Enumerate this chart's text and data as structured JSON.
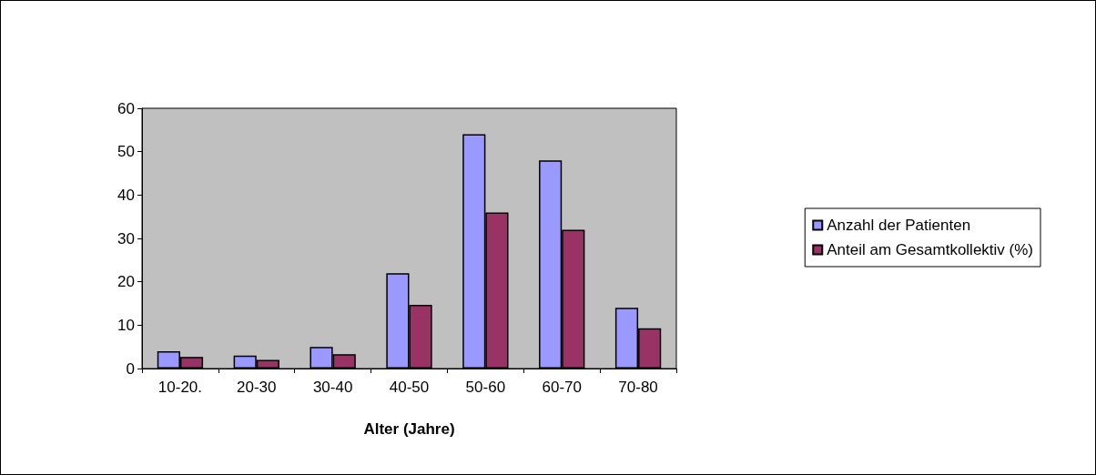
{
  "chart_data": {
    "type": "bar",
    "xlabel": "Alter (Jahre)",
    "categories": [
      "10-20.",
      "20-30",
      "30-40",
      "40-50",
      "50-60",
      "60-70",
      "70-80"
    ],
    "series": [
      {
        "name": "Anzahl der Patienten",
        "color": "#9999ff",
        "values": [
          4,
          3,
          5,
          22,
          54,
          48,
          14
        ]
      },
      {
        "name": "Anteil am Gesamtkollektiv (%)",
        "color": "#993366",
        "values": [
          2.7,
          2,
          3.3,
          14.7,
          36,
          32,
          9.3
        ]
      }
    ],
    "ylim": [
      0,
      60
    ],
    "yticks": [
      0,
      10,
      20,
      30,
      40,
      50,
      60
    ],
    "grid": false,
    "legend": "right"
  }
}
